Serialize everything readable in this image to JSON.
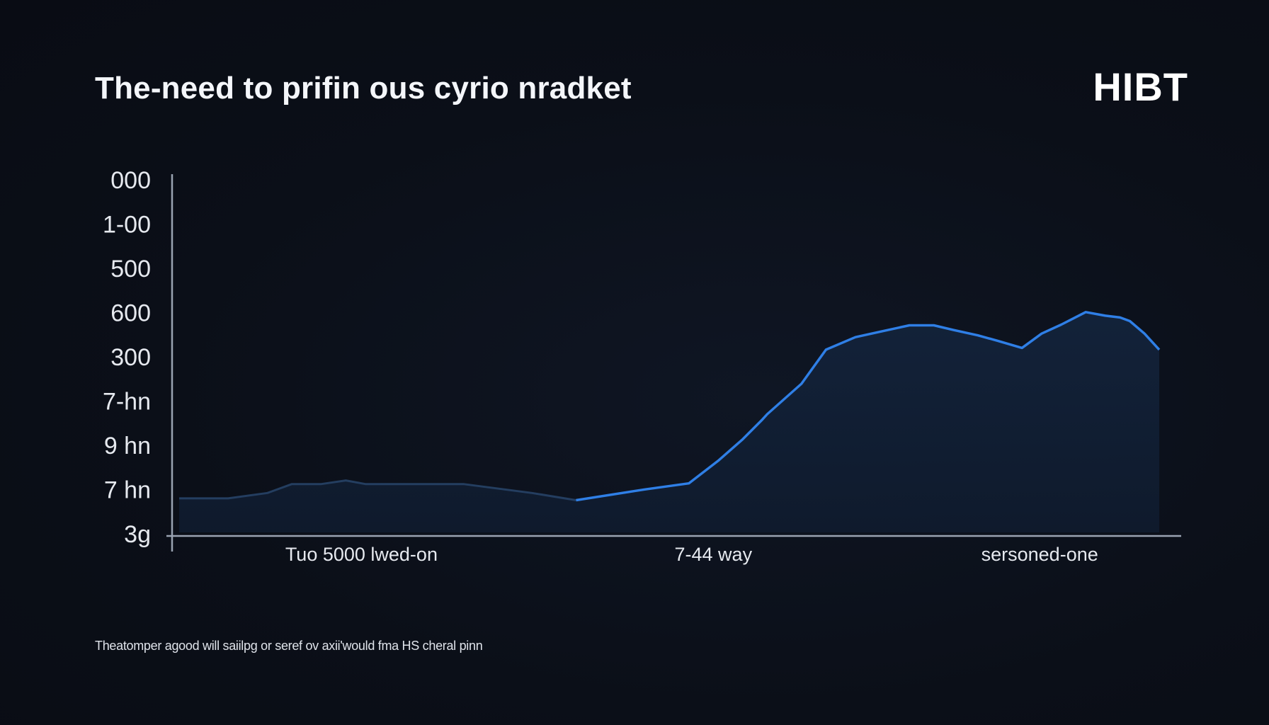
{
  "title": "The-need to prifin ous cyrio nradket",
  "brand": "HIBT",
  "footnote": "Theatomper agood will saiilpg or seref ov axii'would fma HS cheral pinn",
  "colors": {
    "background": "#0b0f18",
    "line": "#2f7fe6",
    "line_dim": "#243e60",
    "area": "#0f1b2e",
    "axis": "#9aa3b2",
    "text": "#e6e9ef"
  },
  "chart_data": {
    "type": "area",
    "ylabels": [
      "000",
      "1-00",
      "500",
      "600",
      "300",
      "7-hn",
      "9 hn",
      "7 hn",
      "3g"
    ],
    "xlabels": [
      {
        "text": "Tuo 5000 lwed-on",
        "x": 0.186
      },
      {
        "text": "7-44 way",
        "x": 0.545
      },
      {
        "text": "sersoned-one",
        "x": 0.878
      }
    ],
    "x": [
      0,
      0.05,
      0.09,
      0.115,
      0.145,
      0.17,
      0.19,
      0.235,
      0.29,
      0.36,
      0.405,
      0.475,
      0.52,
      0.55,
      0.575,
      0.595,
      0.6,
      0.635,
      0.66,
      0.69,
      0.715,
      0.745,
      0.77,
      0.79,
      0.815,
      0.835,
      0.86,
      0.88,
      0.9,
      0.925,
      0.945,
      0.96,
      0.97,
      0.985,
      1.0
    ],
    "y": [
      0.095,
      0.095,
      0.11,
      0.135,
      0.135,
      0.145,
      0.135,
      0.135,
      0.135,
      0.11,
      0.09,
      0.12,
      0.137,
      0.2,
      0.26,
      0.315,
      0.33,
      0.415,
      0.51,
      0.545,
      0.56,
      0.578,
      0.578,
      0.565,
      0.55,
      0.535,
      0.515,
      0.555,
      0.58,
      0.615,
      0.605,
      0.6,
      0.59,
      0.555,
      0.51
    ],
    "split_index": 10,
    "ylim": [
      0,
      1
    ],
    "grid": false,
    "legend": "none"
  }
}
